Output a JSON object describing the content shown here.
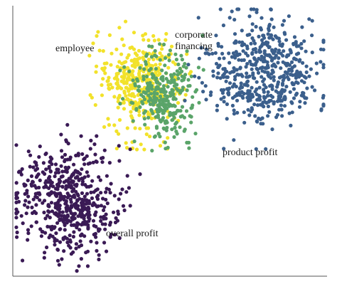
{
  "chart_data": {
    "type": "scatter",
    "title": "",
    "xlabel": "",
    "ylabel": "",
    "grid": false,
    "legend": "none",
    "series": [
      {
        "name": "employee",
        "color": "#f2e22b",
        "center": [
          0.4,
          0.72
        ],
        "spread": [
          0.06,
          0.09
        ],
        "count": 380
      },
      {
        "name": "corporate financing",
        "color": "#5aa469",
        "center": [
          0.48,
          0.67
        ],
        "spread": [
          0.05,
          0.08
        ],
        "count": 300
      },
      {
        "name": "product profit",
        "color": "#3b5f8c",
        "center": [
          0.8,
          0.75
        ],
        "spread": [
          0.09,
          0.1
        ],
        "count": 520
      },
      {
        "name": "overall profit",
        "color": "#3a1a55",
        "center": [
          0.18,
          0.28
        ],
        "spread": [
          0.08,
          0.1
        ],
        "count": 560
      }
    ],
    "annotations": [
      {
        "series": "employee",
        "lines": [
          "employee"
        ]
      },
      {
        "series": "corporate financing",
        "lines": [
          "corporate",
          "financing"
        ]
      },
      {
        "series": "product profit",
        "lines": [
          "product profit"
        ]
      },
      {
        "series": "overall profit",
        "lines": [
          "overall profit"
        ]
      }
    ]
  }
}
